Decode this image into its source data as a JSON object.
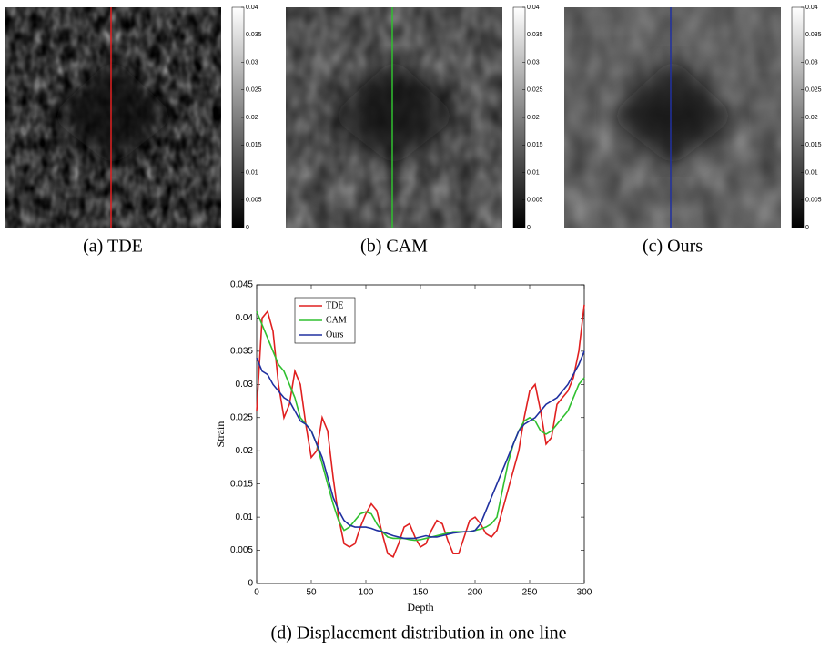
{
  "panels": [
    {
      "caption": "(a) TDE",
      "line_color": "#e02020"
    },
    {
      "caption": "(b) CAM",
      "line_color": "#30c030"
    },
    {
      "caption": "(c) Ours",
      "line_color": "#2030a0"
    }
  ],
  "colorbar": {
    "lim": [
      0,
      0.04
    ],
    "ticks": [
      0,
      0.005,
      0.01,
      0.015,
      0.02,
      0.025,
      0.03,
      0.035,
      0.04
    ]
  },
  "chart_data": {
    "type": "line",
    "caption": "(d) Displacement distribution in one line",
    "x_label": "Depth",
    "y_label": "Strain",
    "xlim": [
      0,
      300
    ],
    "ylim": [
      0,
      0.045
    ],
    "xticks": [
      0,
      50,
      100,
      150,
      200,
      250,
      300
    ],
    "yticks": [
      0,
      0.005,
      0.01,
      0.015,
      0.02,
      0.025,
      0.03,
      0.035,
      0.04,
      0.045
    ],
    "legend": "upper-left",
    "x": [
      0,
      5,
      10,
      15,
      20,
      25,
      30,
      35,
      40,
      45,
      50,
      55,
      60,
      65,
      70,
      75,
      80,
      85,
      90,
      95,
      100,
      105,
      110,
      115,
      120,
      125,
      130,
      135,
      140,
      145,
      150,
      155,
      160,
      165,
      170,
      175,
      180,
      185,
      190,
      195,
      200,
      205,
      210,
      215,
      220,
      225,
      230,
      235,
      240,
      245,
      250,
      255,
      260,
      265,
      270,
      275,
      280,
      285,
      290,
      295,
      300
    ],
    "series": [
      {
        "name": "TDE",
        "color": "#e02020",
        "values": [
          0.026,
          0.04,
          0.041,
          0.038,
          0.03,
          0.025,
          0.027,
          0.032,
          0.03,
          0.024,
          0.019,
          0.02,
          0.025,
          0.023,
          0.016,
          0.01,
          0.006,
          0.0055,
          0.006,
          0.0085,
          0.0105,
          0.012,
          0.011,
          0.0075,
          0.0045,
          0.004,
          0.006,
          0.0085,
          0.009,
          0.007,
          0.0055,
          0.006,
          0.008,
          0.0095,
          0.009,
          0.0065,
          0.0045,
          0.0045,
          0.007,
          0.0095,
          0.01,
          0.009,
          0.0075,
          0.007,
          0.008,
          0.011,
          0.014,
          0.017,
          0.02,
          0.025,
          0.029,
          0.03,
          0.026,
          0.021,
          0.022,
          0.027,
          0.028,
          0.029,
          0.031,
          0.035,
          0.042
        ]
      },
      {
        "name": "CAM",
        "color": "#30c030",
        "values": [
          0.041,
          0.039,
          0.037,
          0.035,
          0.033,
          0.032,
          0.03,
          0.028,
          0.025,
          0.024,
          0.023,
          0.021,
          0.018,
          0.015,
          0.012,
          0.0095,
          0.008,
          0.0085,
          0.0095,
          0.0105,
          0.0108,
          0.0105,
          0.009,
          0.0078,
          0.007,
          0.0068,
          0.0068,
          0.0068,
          0.0066,
          0.0065,
          0.0066,
          0.0068,
          0.007,
          0.0072,
          0.0074,
          0.0076,
          0.0078,
          0.0078,
          0.0078,
          0.0078,
          0.008,
          0.0082,
          0.0085,
          0.009,
          0.01,
          0.014,
          0.018,
          0.021,
          0.023,
          0.0245,
          0.025,
          0.0245,
          0.023,
          0.0225,
          0.023,
          0.024,
          0.025,
          0.026,
          0.028,
          0.03,
          0.031
        ]
      },
      {
        "name": "Ours",
        "color": "#2030a0",
        "values": [
          0.034,
          0.032,
          0.0315,
          0.03,
          0.029,
          0.028,
          0.0275,
          0.026,
          0.0245,
          0.024,
          0.023,
          0.021,
          0.019,
          0.016,
          0.013,
          0.011,
          0.0095,
          0.0088,
          0.0085,
          0.0085,
          0.0085,
          0.0083,
          0.008,
          0.0078,
          0.0075,
          0.0072,
          0.007,
          0.0068,
          0.0068,
          0.0068,
          0.007,
          0.0072,
          0.007,
          0.007,
          0.0072,
          0.0074,
          0.0076,
          0.0077,
          0.0078,
          0.0078,
          0.008,
          0.009,
          0.011,
          0.013,
          0.015,
          0.017,
          0.019,
          0.021,
          0.023,
          0.024,
          0.0245,
          0.025,
          0.026,
          0.027,
          0.0275,
          0.028,
          0.029,
          0.03,
          0.0315,
          0.033,
          0.035
        ]
      }
    ]
  }
}
